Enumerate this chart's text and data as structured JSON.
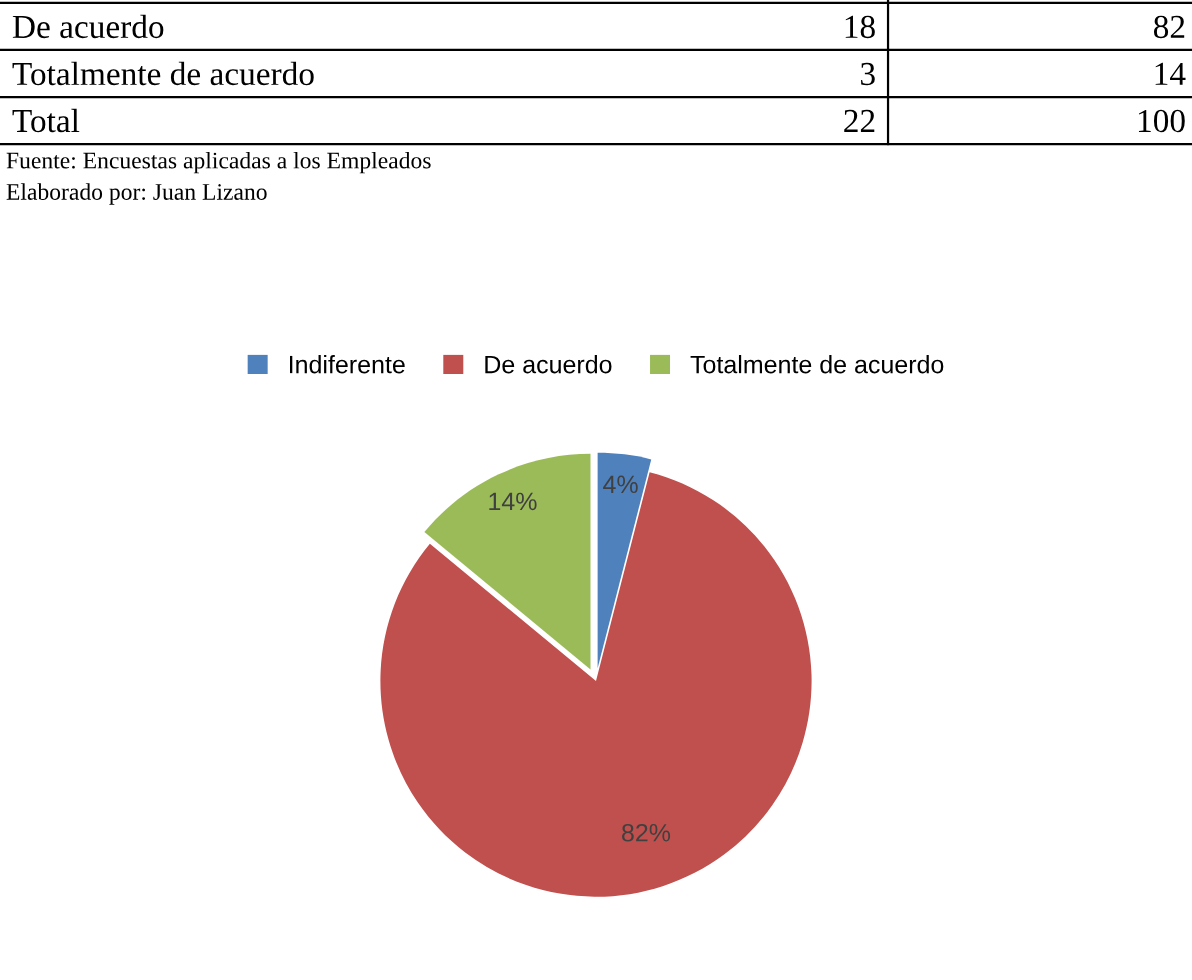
{
  "chart_data": {
    "type": "pie",
    "categories": [
      "Indiferente",
      "De acuerdo",
      "Totalmente de acuerdo"
    ],
    "values": [
      4,
      82,
      14
    ],
    "colors": [
      "#4f81bd",
      "#c0504d",
      "#9bbb59"
    ],
    "value_labels": [
      "4%",
      "82%",
      "14%"
    ],
    "legend": "top",
    "annotations": [
      "De acuerdo",
      "18",
      "82",
      "Totalmente de acuerdo",
      "3",
      "14",
      "Total",
      "22",
      "100",
      "Fuente: Encuestas aplicadas a los Empleados",
      "Elaborado por: Juan Lizano"
    ]
  }
}
